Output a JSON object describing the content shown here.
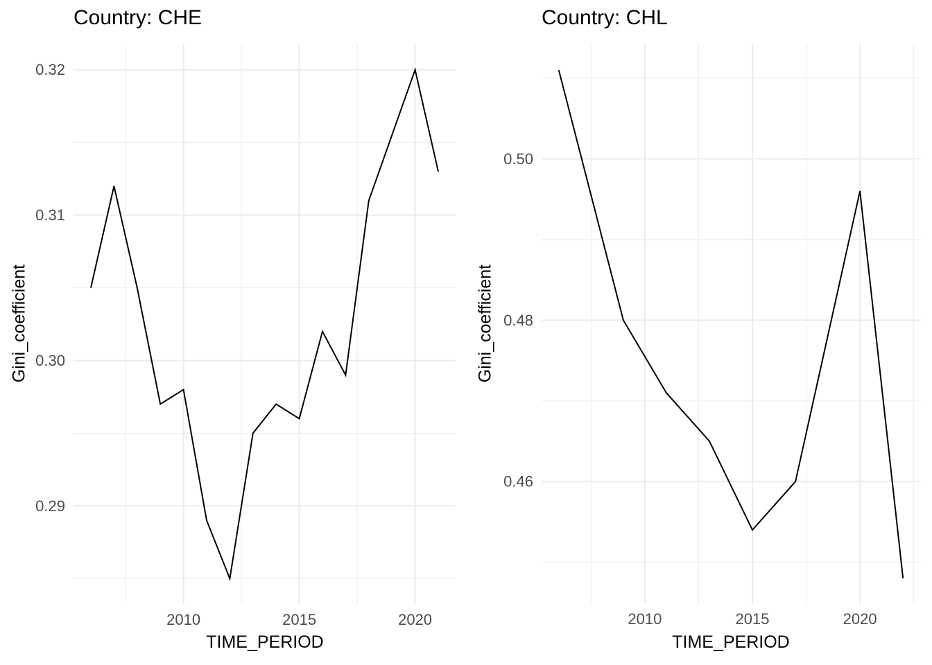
{
  "page": {
    "background_color": "#FFFFFF",
    "grid_color": "#EBEBEB",
    "line_color": "#000000",
    "tick_label_color": "#4D4D4D",
    "title_color": "#000000"
  },
  "chart_data": [
    {
      "type": "line",
      "title": "Country: CHE",
      "xlabel": "TIME_PERIOD",
      "ylabel": "Gini_coefficient",
      "legend_position": "none",
      "grid": true,
      "x": [
        2006,
        2007,
        2008,
        2009,
        2010,
        2011,
        2012,
        2013,
        2014,
        2015,
        2016,
        2017,
        2018,
        2019,
        2020,
        2021
      ],
      "y": [
        0.305,
        0.312,
        0.305,
        0.297,
        0.298,
        0.289,
        0.285,
        0.295,
        0.297,
        0.296,
        0.302,
        0.299,
        0.311,
        0.3155,
        0.32,
        0.313
      ],
      "xlim": [
        2005.25,
        2021.75
      ],
      "ylim": [
        0.28325,
        0.32175
      ],
      "x_major_ticks": [
        2010,
        2015,
        2020
      ],
      "x_tick_labels": [
        "2010",
        "2015",
        "2020"
      ],
      "x_minor_ticks": [
        2007.5,
        2012.5,
        2017.5
      ],
      "y_major_ticks": [
        0.29,
        0.3,
        0.31,
        0.32
      ],
      "y_tick_labels": [
        "0.29",
        "0.30",
        "0.31",
        "0.32"
      ],
      "y_minor_ticks": [
        0.285,
        0.295,
        0.305,
        0.315
      ]
    },
    {
      "type": "line",
      "title": "Country: CHL",
      "xlabel": "TIME_PERIOD",
      "ylabel": "Gini_coefficient",
      "legend_position": "none",
      "grid": true,
      "x": [
        2006,
        2009,
        2011,
        2013,
        2015,
        2017,
        2020,
        2022
      ],
      "y": [
        0.511,
        0.48,
        0.471,
        0.465,
        0.454,
        0.46,
        0.496,
        0.448
      ],
      "xlim": [
        2005.2,
        2022.8
      ],
      "ylim": [
        0.4449,
        0.5142
      ],
      "x_major_ticks": [
        2010,
        2015,
        2020
      ],
      "x_tick_labels": [
        "2010",
        "2015",
        "2020"
      ],
      "x_minor_ticks": [
        2007.5,
        2012.5,
        2017.5,
        2022.5
      ],
      "y_major_ticks": [
        0.46,
        0.48,
        0.5
      ],
      "y_tick_labels": [
        "0.46",
        "0.48",
        "0.50"
      ],
      "y_minor_ticks": [
        0.45,
        0.47,
        0.49,
        0.51
      ]
    }
  ]
}
